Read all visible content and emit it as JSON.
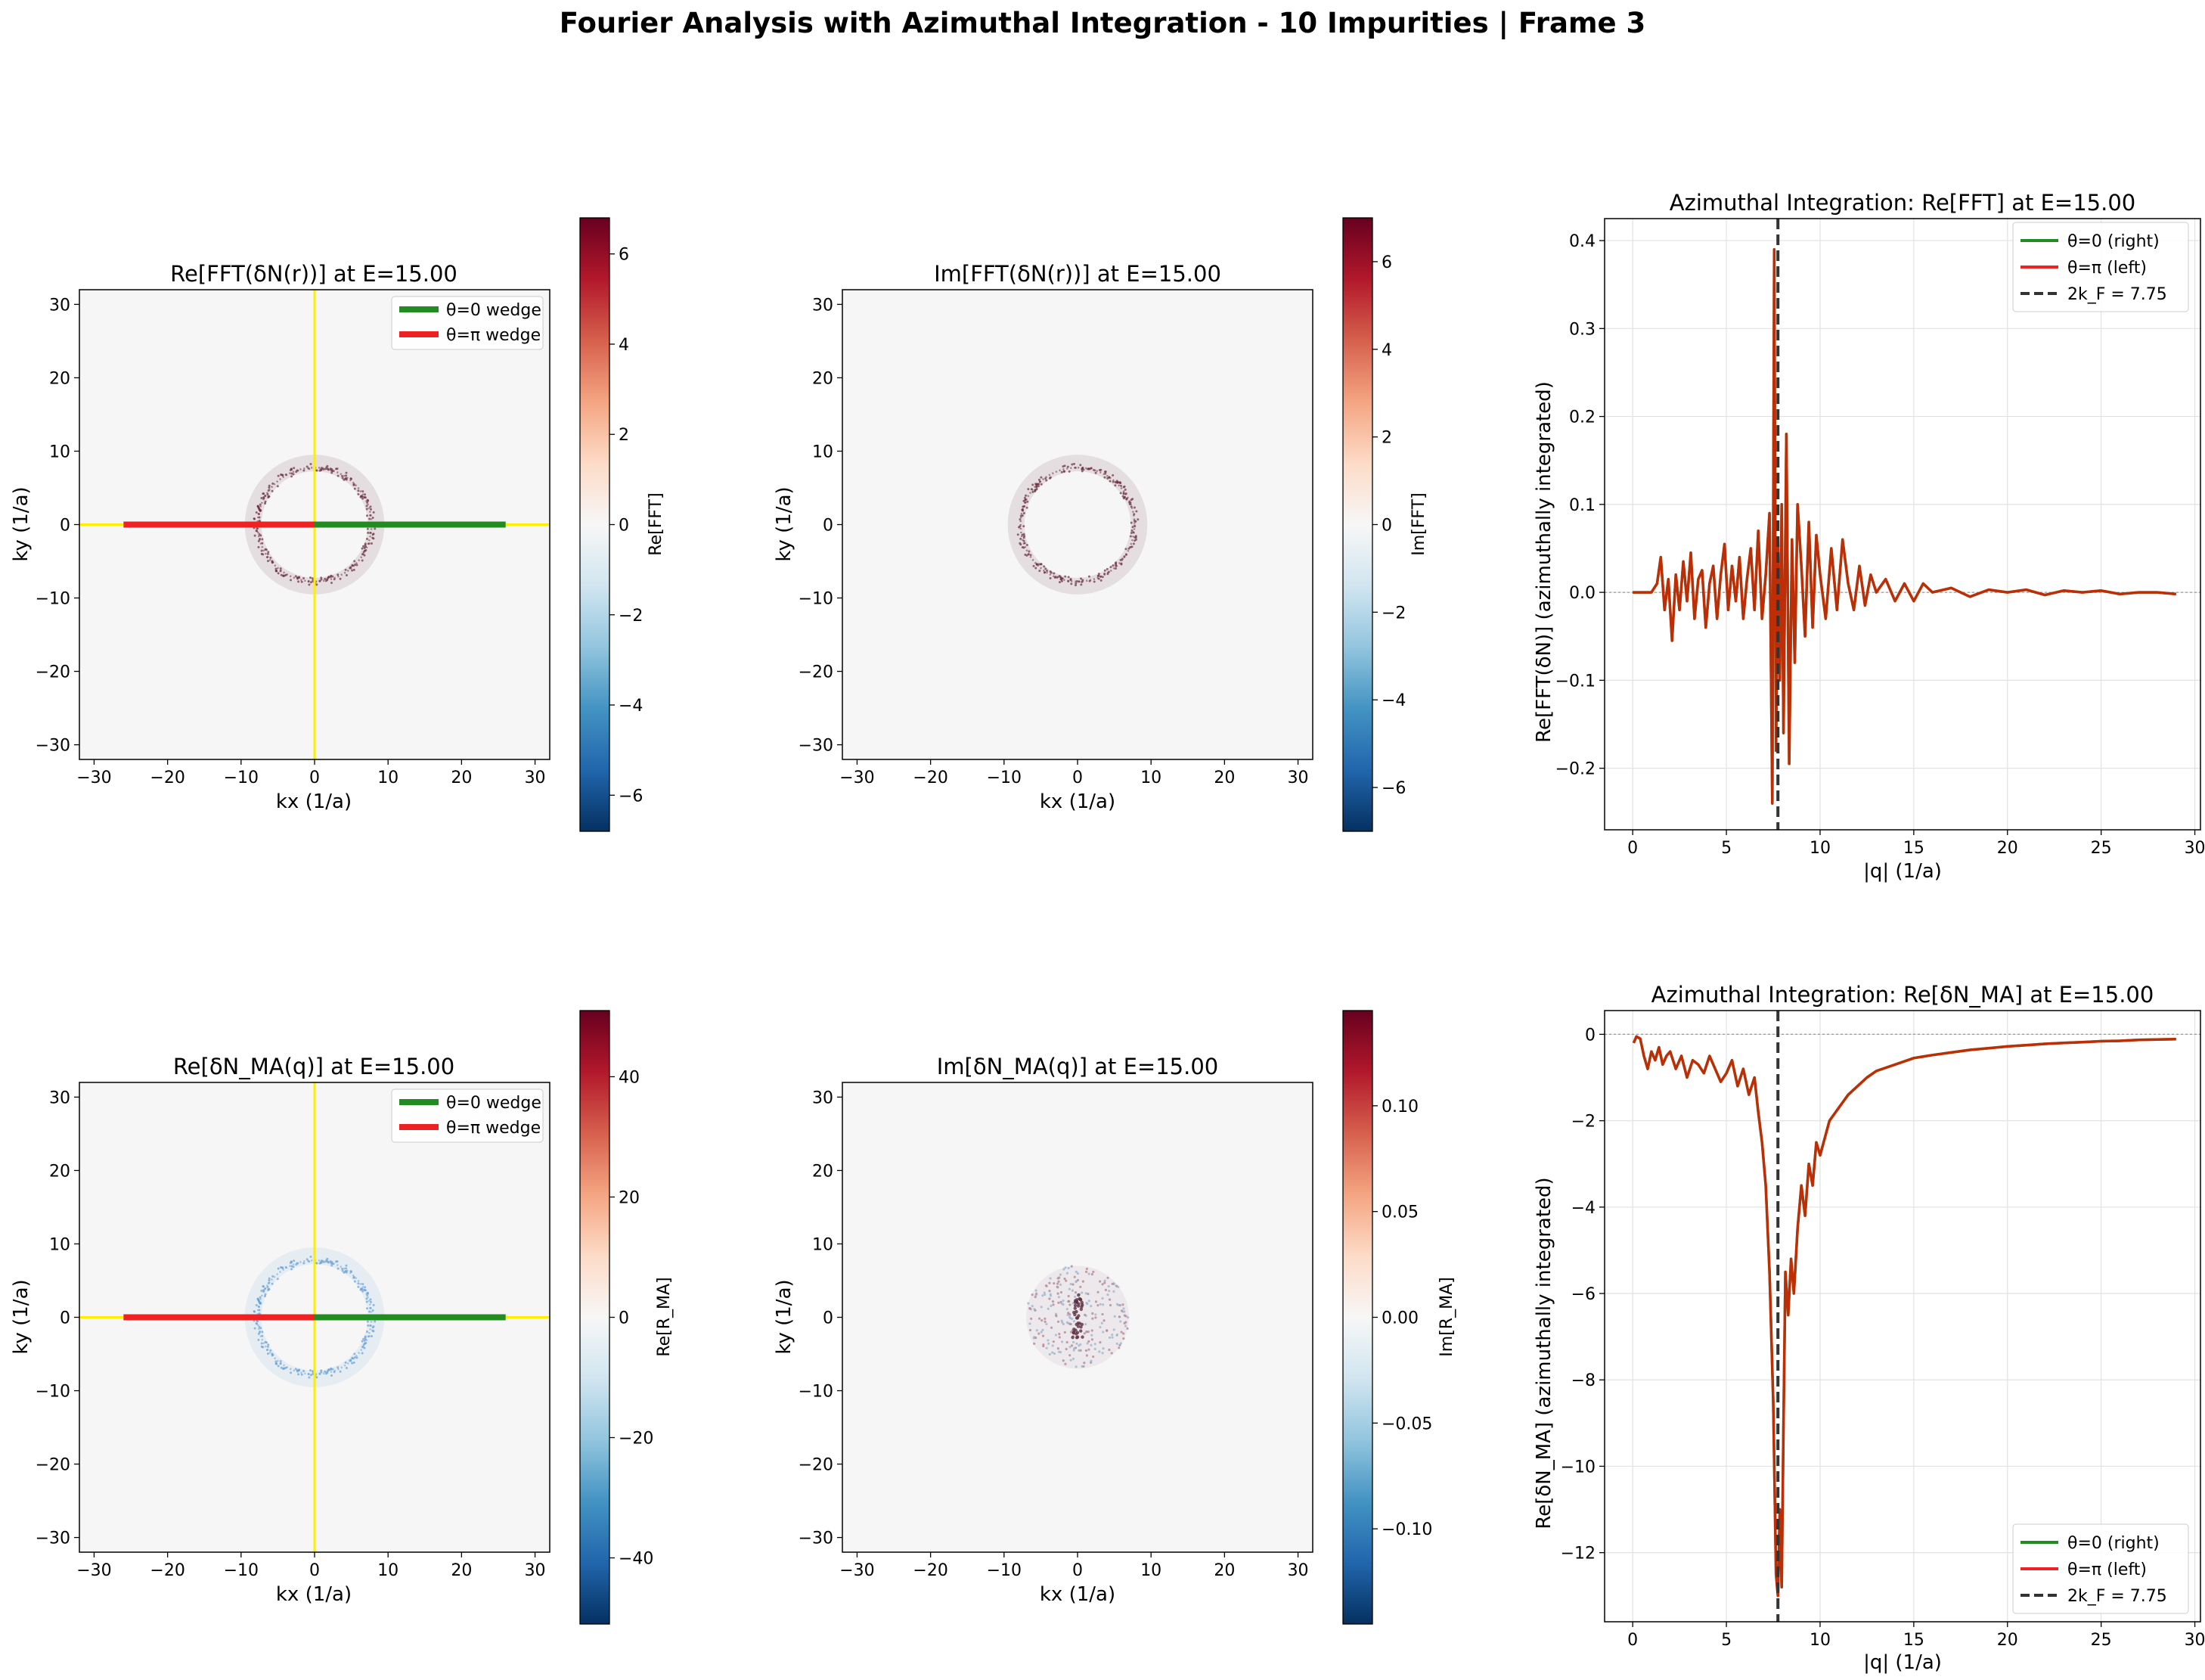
{
  "figure": {
    "title": "Fourier Analysis with Azimuthal Integration - 10 Impurities | Frame 3"
  },
  "colors": {
    "wedge_right": "#228B22",
    "wedge_left": "#EE2222",
    "axis_line": "#FFEE00",
    "ring_dark": "#6b3040",
    "ring_blue": "#6aa3d5",
    "curve": "#cc2200",
    "vline": "#333333"
  },
  "icons": {
    "legend_dashed_line": "dashed-line-icon",
    "legend_solid_line": "solid-line-icon"
  },
  "chart_data": [
    {
      "type": "heatmap",
      "title": "Re[FFT(δN(r))] at E=15.00",
      "xlabel": "kx (1/a)",
      "ylabel": "ky (1/a)",
      "xlim": [
        -32,
        32
      ],
      "ylim": [
        -32,
        32
      ],
      "xticks": [
        -30,
        -20,
        -10,
        0,
        10,
        20,
        30
      ],
      "yticks": [
        -30,
        -20,
        -10,
        0,
        10,
        20,
        30
      ],
      "ring_radius": 7.75,
      "ring_style": "dark",
      "wedges": [
        {
          "name": "θ=0 wedge",
          "from": 0,
          "to": 26,
          "color": "#228B22"
        },
        {
          "name": "θ=π wedge",
          "from": -26,
          "to": 0,
          "color": "#EE2222"
        }
      ],
      "colorbar": {
        "label": "Re[FFT]",
        "range": [
          -6.8,
          6.8
        ],
        "ticks": [
          -6,
          -4,
          -2,
          0,
          2,
          4,
          6
        ]
      }
    },
    {
      "type": "heatmap",
      "title": "Im[FFT(δN(r))] at E=15.00",
      "xlabel": "kx (1/a)",
      "ylabel": "ky (1/a)",
      "xlim": [
        -32,
        32
      ],
      "ylim": [
        -32,
        32
      ],
      "xticks": [
        -30,
        -20,
        -10,
        0,
        10,
        20,
        30
      ],
      "yticks": [
        -30,
        -20,
        -10,
        0,
        10,
        20,
        30
      ],
      "ring_radius": 7.75,
      "ring_style": "dark",
      "wedges": [],
      "colorbar": {
        "label": "Im[FFT]",
        "range": [
          -7,
          7
        ],
        "ticks": [
          -6,
          -4,
          -2,
          0,
          2,
          4,
          6
        ]
      }
    },
    {
      "type": "line",
      "title": "Azimuthal Integration: Re[FFT] at E=15.00",
      "xlabel": "|q| (1/a)",
      "ylabel": "Re[FFT(δN)] (azimuthally integrated)",
      "xlim": [
        -1.5,
        30.3
      ],
      "ylim": [
        -0.27,
        0.425
      ],
      "xticks": [
        0,
        5,
        10,
        15,
        20,
        25,
        30
      ],
      "yticks": [
        -0.2,
        -0.1,
        0.0,
        0.1,
        0.2,
        0.3,
        0.4
      ],
      "ytick_labels": [
        "−0.2",
        "−0.1",
        "0.0",
        "0.1",
        "0.2",
        "0.3",
        "0.4"
      ],
      "grid": true,
      "legend_position": "top-right",
      "vline": {
        "x": 7.75,
        "name": "2k_F = 7.75"
      },
      "series": [
        {
          "name": "θ=0 (right)",
          "color": "#228B22"
        },
        {
          "name": "θ=π (left)",
          "color": "#EE2222"
        }
      ],
      "x": [
        0,
        0.5,
        1.0,
        1.3,
        1.5,
        1.7,
        1.9,
        2.1,
        2.3,
        2.5,
        2.7,
        2.9,
        3.1,
        3.3,
        3.5,
        3.7,
        3.9,
        4.1,
        4.3,
        4.5,
        4.7,
        4.9,
        5.1,
        5.3,
        5.5,
        5.7,
        5.9,
        6.1,
        6.3,
        6.5,
        6.7,
        6.9,
        7.1,
        7.3,
        7.45,
        7.55,
        7.65,
        7.75,
        7.85,
        7.95,
        8.05,
        8.2,
        8.35,
        8.5,
        8.65,
        8.8,
        9.0,
        9.2,
        9.4,
        9.6,
        9.8,
        10.0,
        10.3,
        10.6,
        10.9,
        11.2,
        11.5,
        11.8,
        12.1,
        12.4,
        12.7,
        13.0,
        13.5,
        14.0,
        14.5,
        15.0,
        15.5,
        16.0,
        17.0,
        18.0,
        19.0,
        20.0,
        21.0,
        22.0,
        23.0,
        24.0,
        25.0,
        26.0,
        27.0,
        28.0,
        29.0
      ],
      "y": [
        0.0,
        0.0,
        0.0,
        0.01,
        0.04,
        -0.02,
        0.015,
        -0.055,
        0.02,
        -0.02,
        0.035,
        -0.01,
        0.045,
        -0.03,
        0.015,
        0.025,
        -0.04,
        0.01,
        0.03,
        -0.03,
        0.02,
        0.055,
        -0.02,
        0.03,
        -0.01,
        0.04,
        -0.03,
        0.015,
        0.05,
        -0.02,
        0.07,
        -0.03,
        0.02,
        0.09,
        -0.24,
        0.39,
        -0.18,
        0.06,
        -0.1,
        0.1,
        -0.16,
        0.18,
        -0.195,
        0.06,
        -0.08,
        0.1,
        0.03,
        -0.05,
        0.08,
        -0.04,
        0.065,
        0.02,
        -0.03,
        0.05,
        -0.02,
        0.06,
        0.01,
        -0.02,
        0.03,
        -0.015,
        0.02,
        0.0,
        0.015,
        -0.01,
        0.01,
        -0.01,
        0.01,
        0.0,
        0.005,
        -0.005,
        0.003,
        0.0,
        0.003,
        -0.003,
        0.002,
        0.0,
        0.002,
        -0.002,
        0.0,
        0.0,
        -0.002
      ]
    },
    {
      "type": "heatmap",
      "title": "Re[δN_MA(q)] at E=15.00",
      "xlabel": "kx (1/a)",
      "ylabel": "ky (1/a)",
      "xlim": [
        -32,
        32
      ],
      "ylim": [
        -32,
        32
      ],
      "xticks": [
        -30,
        -20,
        -10,
        0,
        10,
        20,
        30
      ],
      "yticks": [
        -30,
        -20,
        -10,
        0,
        10,
        20,
        30
      ],
      "ring_radius": 7.75,
      "ring_style": "blue",
      "wedges": [
        {
          "name": "θ=0 wedge",
          "from": 0,
          "to": 26,
          "color": "#228B22"
        },
        {
          "name": "θ=π wedge",
          "from": -26,
          "to": 0,
          "color": "#EE2222"
        }
      ],
      "colorbar": {
        "label": "Re[R_MA]",
        "range": [
          -51,
          51
        ],
        "ticks": [
          -40,
          -20,
          0,
          20,
          40
        ]
      }
    },
    {
      "type": "heatmap",
      "title": "Im[δN_MA(q)] at E=15.00",
      "xlabel": "kx (1/a)",
      "ylabel": "ky (1/a)",
      "xlim": [
        -32,
        32
      ],
      "ylim": [
        -32,
        32
      ],
      "xticks": [
        -30,
        -20,
        -10,
        0,
        10,
        20,
        30
      ],
      "yticks": [
        -30,
        -20,
        -10,
        0,
        10,
        20,
        30
      ],
      "ring_radius": 7.0,
      "ring_style": "disk",
      "wedges": [],
      "colorbar": {
        "label": "Im[R_MA]",
        "range": [
          -0.145,
          0.145
        ],
        "ticks": [
          -0.1,
          -0.05,
          0.0,
          0.05,
          0.1
        ],
        "tick_labels": [
          "−0.10",
          "−0.05",
          "0.00",
          "0.05",
          "0.10"
        ]
      }
    },
    {
      "type": "line",
      "title": "Azimuthal Integration: Re[δN_MA] at E=15.00",
      "xlabel": "|q| (1/a)",
      "ylabel": "Re[δN_MA] (azimuthally integrated)",
      "xlim": [
        -1.5,
        30.3
      ],
      "ylim": [
        -13.6,
        0.55
      ],
      "xticks": [
        0,
        5,
        10,
        15,
        20,
        25,
        30
      ],
      "yticks": [
        -12,
        -10,
        -8,
        -6,
        -4,
        -2,
        0
      ],
      "ytick_labels": [
        "−12",
        "−10",
        "−8",
        "−6",
        "−4",
        "−2",
        "0"
      ],
      "grid": true,
      "legend_position": "bottom-right",
      "vline": {
        "x": 7.75,
        "name": "2k_F = 7.75"
      },
      "series": [
        {
          "name": "θ=0 (right)",
          "color": "#228B22"
        },
        {
          "name": "θ=π (left)",
          "color": "#EE2222"
        }
      ],
      "x": [
        0.05,
        0.2,
        0.4,
        0.6,
        0.8,
        1.0,
        1.2,
        1.4,
        1.6,
        1.8,
        2.0,
        2.3,
        2.6,
        2.9,
        3.2,
        3.5,
        3.8,
        4.1,
        4.4,
        4.7,
        5.0,
        5.3,
        5.6,
        5.9,
        6.2,
        6.5,
        6.7,
        6.9,
        7.1,
        7.3,
        7.5,
        7.65,
        7.75,
        7.85,
        7.95,
        8.05,
        8.15,
        8.3,
        8.45,
        8.6,
        8.8,
        9.0,
        9.2,
        9.4,
        9.6,
        9.8,
        10.0,
        10.5,
        11.0,
        11.5,
        12.0,
        12.5,
        13.0,
        14.0,
        15.0,
        16.0,
        17.0,
        18.0,
        19.0,
        20.0,
        21.0,
        22.0,
        23.0,
        24.0,
        25.0,
        26.0,
        27.0,
        28.0,
        29.0
      ],
      "y": [
        -0.2,
        -0.05,
        -0.1,
        -0.5,
        -0.8,
        -0.4,
        -0.6,
        -0.3,
        -0.7,
        -0.5,
        -0.4,
        -0.8,
        -0.5,
        -1.0,
        -0.6,
        -0.7,
        -0.9,
        -0.5,
        -0.8,
        -1.1,
        -0.9,
        -0.6,
        -1.2,
        -0.8,
        -1.4,
        -1.0,
        -1.8,
        -2.5,
        -3.5,
        -5.5,
        -8.5,
        -12.5,
        -13.0,
        -11.0,
        -12.8,
        -9.0,
        -5.5,
        -6.5,
        -5.2,
        -6.0,
        -4.5,
        -3.5,
        -4.2,
        -3.0,
        -3.5,
        -2.5,
        -2.8,
        -2.0,
        -1.7,
        -1.4,
        -1.2,
        -1.0,
        -0.85,
        -0.7,
        -0.55,
        -0.48,
        -0.42,
        -0.36,
        -0.32,
        -0.28,
        -0.25,
        -0.22,
        -0.2,
        -0.18,
        -0.16,
        -0.15,
        -0.13,
        -0.12,
        -0.11
      ]
    }
  ]
}
